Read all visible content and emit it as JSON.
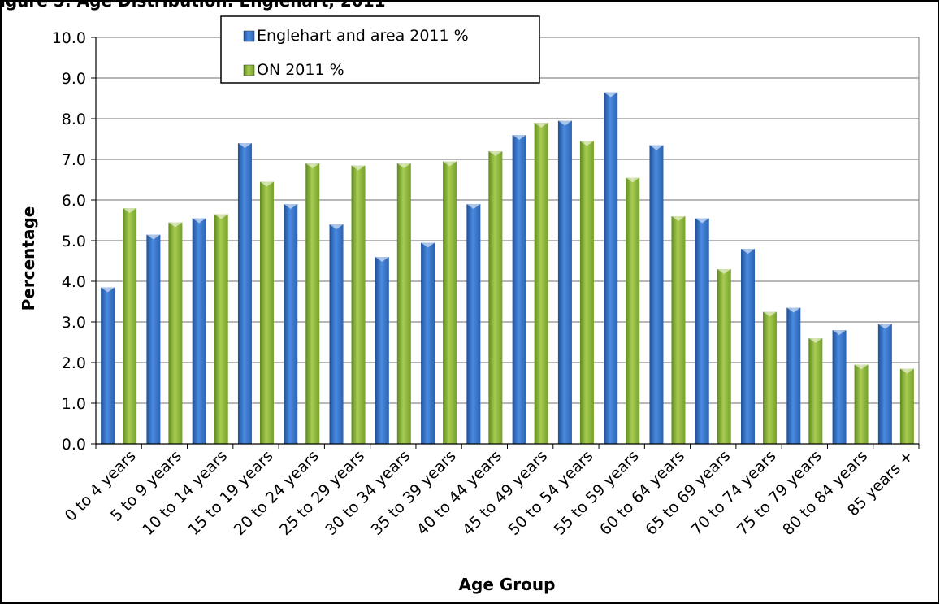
{
  "page": {
    "title_fragment": "igure 5: Age Distribution: Englehart, 2011"
  },
  "chart_data": {
    "type": "bar",
    "title": "",
    "xlabel": "Age Group",
    "ylabel": "Percentage",
    "ylim": [
      0,
      10
    ],
    "ytick_step": 1,
    "ytick_labels": [
      "0.0",
      "1.0",
      "2.0",
      "3.0",
      "4.0",
      "5.0",
      "6.0",
      "7.0",
      "8.0",
      "9.0",
      "10.0"
    ],
    "grid": true,
    "legend_position": "top-left",
    "categories": [
      "0 to 4 years",
      "5 to 9 years",
      "10 to 14 years",
      "15 to 19 years",
      "20 to 24 years",
      "25 to 29 years",
      "30 to 34 years",
      "35 to 39 years",
      "40 to 44 years",
      "45 to 49 years",
      "50 to 54 years",
      "55 to 59 years",
      "60 to 64 years",
      "65 to 69 years",
      "70 to 74 years",
      "75 to 79 years",
      "80 to 84 years",
      "85 years +"
    ],
    "series": [
      {
        "name": "Englehart and area 2011 %",
        "color": "#3a78c8",
        "values": [
          3.85,
          5.15,
          5.55,
          7.4,
          5.9,
          5.4,
          4.6,
          4.95,
          5.9,
          7.6,
          7.95,
          8.65,
          7.35,
          5.55,
          4.8,
          3.35,
          2.8,
          2.95
        ]
      },
      {
        "name": "ON 2011 %",
        "color": "#8cb43c",
        "values": [
          5.8,
          5.45,
          5.65,
          6.45,
          6.9,
          6.85,
          6.9,
          6.95,
          7.2,
          7.9,
          7.45,
          6.55,
          5.6,
          4.3,
          3.25,
          2.6,
          1.95,
          1.85
        ]
      }
    ]
  }
}
